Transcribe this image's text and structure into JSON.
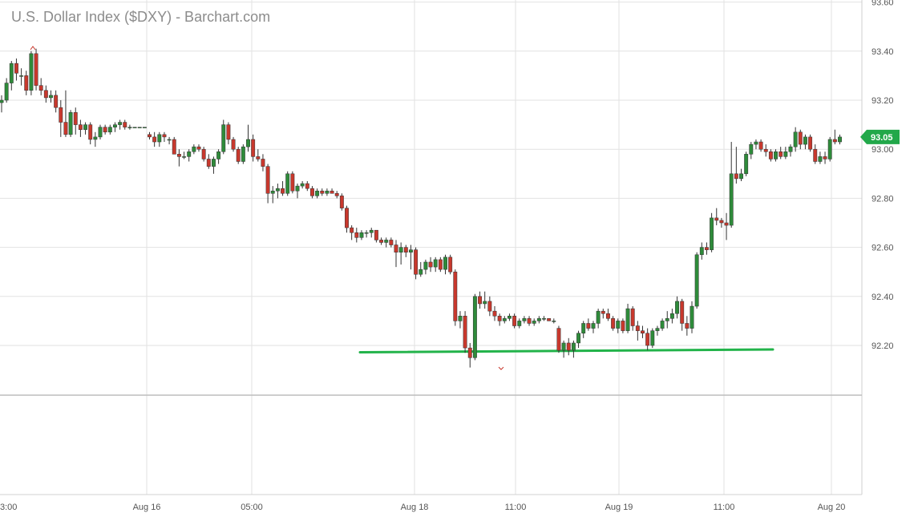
{
  "chart_data": {
    "type": "candlestick",
    "title": "U.S. Dollar Index ($DXY) - Barchart.com",
    "ylim": [
      92.0,
      93.6
    ],
    "y_ticks": [
      "93.60",
      "93.40",
      "93.20",
      "93.00",
      "92.80",
      "92.60",
      "92.40",
      "92.20"
    ],
    "x_ticks": [
      "3:00",
      "Aug 16",
      "05:00",
      "Aug 18",
      "11:00",
      "Aug 19",
      "11:00",
      "Aug 20"
    ],
    "grid": true,
    "last_price_label": "93.05",
    "last_price": 93.05,
    "up_color": "#2e8b3a",
    "down_color": "#c8382d",
    "support_line_color": "#22b34a",
    "price_badge_color": "#22a84a",
    "ohlc": [
      [
        93.19,
        93.22,
        93.15,
        93.2
      ],
      [
        93.2,
        93.29,
        93.19,
        93.27
      ],
      [
        93.27,
        93.36,
        93.24,
        93.35
      ],
      [
        93.35,
        93.37,
        93.28,
        93.31
      ],
      [
        93.3,
        93.33,
        93.26,
        93.3
      ],
      [
        93.3,
        93.32,
        93.22,
        93.24
      ],
      [
        93.24,
        93.4,
        93.22,
        93.39
      ],
      [
        93.39,
        93.41,
        93.24,
        93.26
      ],
      [
        93.26,
        93.29,
        93.22,
        93.24
      ],
      [
        93.24,
        93.26,
        93.19,
        93.21
      ],
      [
        93.21,
        93.24,
        93.19,
        93.22
      ],
      [
        93.22,
        93.24,
        93.15,
        93.17
      ],
      [
        93.17,
        93.2,
        93.05,
        93.11
      ],
      [
        93.11,
        93.24,
        93.05,
        93.06
      ],
      [
        93.06,
        93.16,
        93.05,
        93.15
      ],
      [
        93.15,
        93.17,
        93.06,
        93.1
      ],
      [
        93.1,
        93.12,
        93.05,
        93.08
      ],
      [
        93.08,
        93.11,
        93.06,
        93.1
      ],
      [
        93.1,
        93.11,
        93.02,
        93.04
      ],
      [
        93.04,
        93.07,
        93.01,
        93.05
      ],
      [
        93.05,
        93.1,
        93.04,
        93.09
      ],
      [
        93.09,
        93.1,
        93.06,
        93.07
      ],
      [
        93.07,
        93.1,
        93.06,
        93.09
      ],
      [
        93.09,
        93.11,
        93.07,
        93.1
      ],
      [
        93.1,
        93.12,
        93.08,
        93.11
      ],
      [
        93.11,
        93.12,
        93.08,
        93.09
      ],
      [
        93.09,
        93.1,
        93.08,
        93.09
      ],
      [
        93.09,
        93.09,
        93.09,
        93.09
      ],
      [
        93.09,
        93.09,
        93.09,
        93.09
      ],
      [
        93.09,
        93.09,
        93.09,
        93.09
      ],
      [
        93.06,
        93.07,
        93.04,
        93.05
      ],
      [
        93.05,
        93.07,
        93.01,
        93.03
      ],
      [
        93.03,
        93.07,
        93.01,
        93.06
      ],
      [
        93.06,
        93.07,
        93.03,
        93.05
      ],
      [
        93.04,
        93.05,
        93.02,
        93.04
      ],
      [
        93.04,
        93.05,
        92.98,
        92.98
      ],
      [
        92.98,
        93.0,
        92.93,
        92.97
      ],
      [
        92.97,
        92.99,
        92.96,
        92.97
      ],
      [
        92.97,
        93.0,
        92.95,
        92.99
      ],
      [
        92.99,
        93.02,
        92.98,
        93.01
      ],
      [
        93.01,
        93.02,
        92.99,
        93.0
      ],
      [
        93.0,
        93.01,
        92.95,
        92.96
      ],
      [
        92.96,
        92.98,
        92.92,
        92.93
      ],
      [
        92.93,
        92.97,
        92.9,
        92.96
      ],
      [
        92.96,
        93.0,
        92.94,
        92.99
      ],
      [
        92.99,
        93.12,
        92.98,
        93.1
      ],
      [
        93.1,
        93.11,
        93.02,
        93.04
      ],
      [
        93.04,
        93.05,
        92.99,
        93.0
      ],
      [
        93.0,
        93.01,
        92.94,
        92.95
      ],
      [
        92.95,
        93.02,
        92.94,
        93.01
      ],
      [
        93.01,
        93.1,
        92.99,
        93.04
      ],
      [
        93.04,
        93.06,
        92.95,
        92.97
      ],
      [
        92.97,
        93.0,
        92.95,
        92.96
      ],
      [
        92.96,
        92.98,
        92.91,
        92.93
      ],
      [
        92.93,
        92.94,
        92.78,
        92.82
      ],
      [
        92.82,
        92.85,
        92.78,
        92.83
      ],
      [
        92.83,
        92.86,
        92.8,
        92.84
      ],
      [
        92.84,
        92.87,
        92.81,
        92.82
      ],
      [
        92.82,
        92.91,
        92.81,
        92.9
      ],
      [
        92.9,
        92.91,
        92.82,
        92.83
      ],
      [
        92.83,
        92.86,
        92.8,
        92.85
      ],
      [
        92.85,
        92.87,
        92.84,
        92.86
      ],
      [
        92.86,
        92.87,
        92.83,
        92.84
      ],
      [
        92.84,
        92.85,
        92.8,
        92.81
      ],
      [
        92.81,
        92.84,
        92.8,
        92.83
      ],
      [
        92.83,
        92.84,
        92.81,
        92.82
      ],
      [
        92.82,
        92.84,
        92.81,
        92.83
      ],
      [
        92.83,
        92.84,
        92.82,
        92.82
      ],
      [
        92.82,
        92.83,
        92.8,
        92.81
      ],
      [
        92.81,
        92.82,
        92.75,
        92.76
      ],
      [
        92.76,
        92.77,
        92.66,
        92.68
      ],
      [
        92.68,
        92.69,
        92.63,
        92.66
      ],
      [
        92.66,
        92.68,
        92.62,
        92.64
      ],
      [
        92.64,
        92.67,
        92.63,
        92.66
      ],
      [
        92.66,
        92.67,
        92.64,
        92.66
      ],
      [
        92.66,
        92.68,
        92.64,
        92.67
      ],
      [
        92.67,
        92.67,
        92.62,
        92.63
      ],
      [
        92.63,
        92.64,
        92.61,
        92.62
      ],
      [
        92.62,
        92.64,
        92.6,
        92.63
      ],
      [
        92.63,
        92.64,
        92.6,
        92.61
      ],
      [
        92.61,
        92.63,
        92.52,
        92.58
      ],
      [
        92.58,
        92.62,
        92.53,
        92.6
      ],
      [
        92.6,
        92.61,
        92.56,
        92.58
      ],
      [
        92.58,
        92.61,
        92.51,
        92.59
      ],
      [
        92.59,
        92.6,
        92.47,
        92.49
      ],
      [
        92.49,
        92.54,
        92.48,
        92.51
      ],
      [
        92.51,
        92.55,
        92.49,
        92.54
      ],
      [
        92.54,
        92.56,
        92.5,
        92.52
      ],
      [
        92.52,
        92.56,
        92.5,
        92.55
      ],
      [
        92.55,
        92.56,
        92.5,
        92.51
      ],
      [
        92.51,
        92.57,
        92.49,
        92.56
      ],
      [
        92.56,
        92.57,
        92.49,
        92.5
      ],
      [
        92.5,
        92.51,
        92.28,
        92.3
      ],
      [
        92.3,
        92.34,
        92.27,
        92.32
      ],
      [
        92.32,
        92.34,
        92.17,
        92.19
      ],
      [
        92.19,
        92.21,
        92.11,
        92.15
      ],
      [
        92.15,
        92.41,
        92.14,
        92.4
      ],
      [
        92.4,
        92.42,
        92.35,
        92.37
      ],
      [
        92.37,
        92.42,
        92.35,
        92.38
      ],
      [
        92.38,
        92.4,
        92.32,
        92.34
      ],
      [
        92.34,
        92.36,
        92.3,
        92.32
      ],
      [
        92.32,
        92.33,
        92.28,
        92.3
      ],
      [
        92.3,
        92.32,
        92.29,
        92.31
      ],
      [
        92.31,
        92.33,
        92.3,
        92.32
      ],
      [
        92.32,
        92.33,
        92.27,
        92.28
      ],
      [
        92.28,
        92.31,
        92.27,
        92.3
      ],
      [
        92.3,
        92.32,
        92.29,
        92.31
      ],
      [
        92.31,
        92.32,
        92.28,
        92.29
      ],
      [
        92.29,
        92.31,
        92.28,
        92.3
      ],
      [
        92.3,
        92.32,
        92.29,
        92.31
      ],
      [
        92.31,
        92.32,
        92.3,
        92.31
      ],
      [
        92.31,
        92.31,
        92.3,
        92.3
      ],
      [
        92.3,
        92.31,
        92.29,
        92.3
      ],
      [
        92.27,
        92.28,
        92.17,
        92.18
      ],
      [
        92.18,
        92.22,
        92.15,
        92.21
      ],
      [
        92.21,
        92.23,
        92.16,
        92.18
      ],
      [
        92.18,
        92.22,
        92.15,
        92.21
      ],
      [
        92.21,
        92.26,
        92.19,
        92.25
      ],
      [
        92.25,
        92.3,
        92.23,
        92.29
      ],
      [
        92.29,
        92.31,
        92.26,
        92.27
      ],
      [
        92.27,
        92.3,
        92.25,
        92.29
      ],
      [
        92.29,
        92.35,
        92.27,
        92.34
      ],
      [
        92.34,
        92.35,
        92.31,
        92.33
      ],
      [
        92.33,
        92.35,
        92.3,
        92.31
      ],
      [
        92.31,
        92.32,
        92.26,
        92.27
      ],
      [
        92.27,
        92.31,
        92.25,
        92.3
      ],
      [
        92.3,
        92.31,
        92.25,
        92.26
      ],
      [
        92.26,
        92.37,
        92.25,
        92.35
      ],
      [
        92.35,
        92.36,
        92.26,
        92.28
      ],
      [
        92.28,
        92.3,
        92.22,
        92.26
      ],
      [
        92.26,
        92.28,
        92.23,
        92.25
      ],
      [
        92.25,
        92.27,
        92.18,
        92.2
      ],
      [
        92.2,
        92.27,
        92.19,
        92.26
      ],
      [
        92.26,
        92.28,
        92.24,
        92.27
      ],
      [
        92.27,
        92.31,
        92.26,
        92.3
      ],
      [
        92.3,
        92.34,
        92.27,
        92.31
      ],
      [
        92.31,
        92.35,
        92.29,
        92.33
      ],
      [
        92.33,
        92.4,
        92.31,
        92.38
      ],
      [
        92.38,
        92.39,
        92.26,
        92.29
      ],
      [
        92.29,
        92.32,
        92.24,
        92.27
      ],
      [
        92.27,
        92.38,
        92.25,
        92.36
      ],
      [
        92.36,
        92.58,
        92.35,
        92.57
      ],
      [
        92.57,
        92.62,
        92.55,
        92.6
      ],
      [
        92.6,
        92.62,
        92.57,
        92.59
      ],
      [
        92.59,
        92.74,
        92.58,
        92.72
      ],
      [
        92.72,
        92.76,
        92.69,
        92.71
      ],
      [
        92.71,
        92.72,
        92.68,
        92.7
      ],
      [
        92.7,
        92.74,
        92.63,
        92.69
      ],
      [
        92.69,
        93.03,
        92.68,
        92.9
      ],
      [
        92.9,
        93.01,
        92.86,
        92.88
      ],
      [
        92.88,
        92.92,
        92.87,
        92.9
      ],
      [
        92.9,
        92.99,
        92.89,
        92.98
      ],
      [
        92.98,
        93.03,
        92.96,
        93.02
      ],
      [
        93.02,
        93.04,
        93.0,
        93.03
      ],
      [
        93.03,
        93.04,
        92.99,
        93.0
      ],
      [
        93.0,
        93.02,
        92.97,
        92.99
      ],
      [
        92.99,
        93.0,
        92.95,
        92.96
      ],
      [
        92.96,
        93.0,
        92.95,
        92.99
      ],
      [
        92.99,
        93.01,
        92.96,
        92.97
      ],
      [
        92.97,
        93.01,
        92.96,
        92.99
      ],
      [
        92.99,
        93.02,
        92.97,
        93.01
      ],
      [
        93.01,
        93.09,
        92.99,
        93.07
      ],
      [
        93.07,
        93.08,
        93.0,
        93.02
      ],
      [
        93.02,
        93.06,
        93.0,
        93.05
      ],
      [
        93.05,
        93.06,
        92.99,
        93.0
      ],
      [
        93.0,
        93.02,
        92.94,
        92.95
      ],
      [
        92.95,
        92.99,
        92.94,
        92.97
      ],
      [
        92.97,
        92.99,
        92.94,
        92.96
      ],
      [
        92.96,
        93.05,
        92.95,
        93.04
      ],
      [
        93.04,
        93.08,
        93.02,
        93.03
      ],
      [
        93.03,
        93.06,
        93.02,
        93.05
      ]
    ]
  }
}
